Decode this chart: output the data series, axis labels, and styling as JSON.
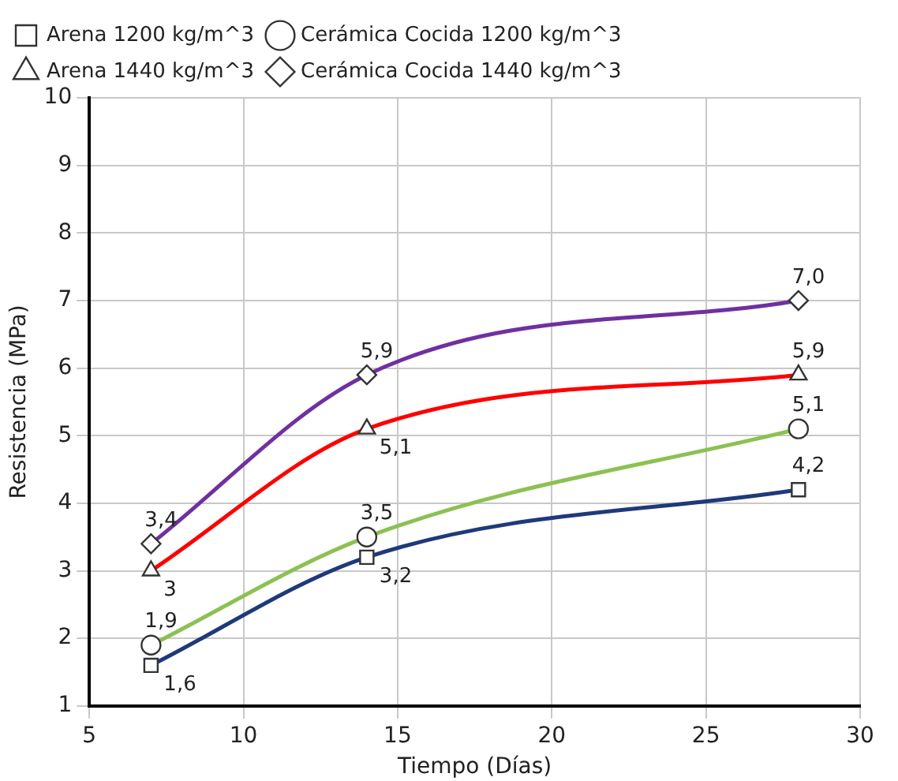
{
  "chart_data": {
    "type": "line",
    "xlabel": "Tiempo (Días)",
    "ylabel": "Resistencia (MPa)",
    "x": [
      7,
      14,
      28
    ],
    "series": [
      {
        "name": "Arena 1200 kg/m^3",
        "color": "#1f3a7a",
        "marker": "square",
        "values": [
          1.6,
          3.2,
          4.2
        ],
        "value_labels": [
          "1,6",
          "3,2",
          "4,2"
        ]
      },
      {
        "name": "Cerámica Cocida 1200 kg/m^3",
        "color": "#8cc152",
        "marker": "circle",
        "values": [
          1.9,
          3.5,
          5.1
        ],
        "value_labels": [
          "1,9",
          "3,5",
          "5,1"
        ]
      },
      {
        "name": "Arena 1440 kg/m^3",
        "color": "#ff0000",
        "marker": "triangle",
        "values": [
          3,
          5.1,
          5.9
        ],
        "value_labels": [
          "3",
          "5,1",
          "5,9"
        ]
      },
      {
        "name": "Cerámica Cocida 1440 kg/m^3",
        "color": "#7030a0",
        "marker": "diamond",
        "values": [
          3.4,
          5.9,
          7.0
        ],
        "value_labels": [
          "3,4",
          "5,9",
          "7,0"
        ]
      }
    ],
    "xlim": [
      5,
      30
    ],
    "xticks": [
      5,
      10,
      15,
      20,
      25,
      30
    ],
    "ylim": [
      1,
      10
    ],
    "yticks": [
      1,
      2,
      3,
      4,
      5,
      6,
      7,
      8,
      9,
      10
    ],
    "grid": true,
    "legend": "top left"
  }
}
